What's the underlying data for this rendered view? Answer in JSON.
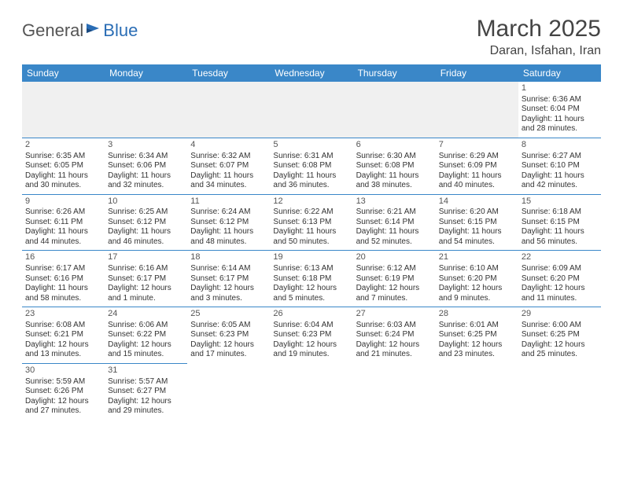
{
  "logo": {
    "part1": "General",
    "part2": "Blue"
  },
  "title": "March 2025",
  "location": "Daran, Isfahan, Iran",
  "colors": {
    "header_bg": "#3a87c8",
    "header_text": "#ffffff",
    "border": "#3a87c8",
    "text": "#333333",
    "title_text": "#444444",
    "logo_gray": "#555555",
    "logo_blue": "#2a6db5"
  },
  "weekdays": [
    "Sunday",
    "Monday",
    "Tuesday",
    "Wednesday",
    "Thursday",
    "Friday",
    "Saturday"
  ],
  "weeks": [
    [
      null,
      null,
      null,
      null,
      null,
      null,
      {
        "n": "1",
        "sr": "6:36 AM",
        "ss": "6:04 PM",
        "dl": "11 hours and 28 minutes."
      }
    ],
    [
      {
        "n": "2",
        "sr": "6:35 AM",
        "ss": "6:05 PM",
        "dl": "11 hours and 30 minutes."
      },
      {
        "n": "3",
        "sr": "6:34 AM",
        "ss": "6:06 PM",
        "dl": "11 hours and 32 minutes."
      },
      {
        "n": "4",
        "sr": "6:32 AM",
        "ss": "6:07 PM",
        "dl": "11 hours and 34 minutes."
      },
      {
        "n": "5",
        "sr": "6:31 AM",
        "ss": "6:08 PM",
        "dl": "11 hours and 36 minutes."
      },
      {
        "n": "6",
        "sr": "6:30 AM",
        "ss": "6:08 PM",
        "dl": "11 hours and 38 minutes."
      },
      {
        "n": "7",
        "sr": "6:29 AM",
        "ss": "6:09 PM",
        "dl": "11 hours and 40 minutes."
      },
      {
        "n": "8",
        "sr": "6:27 AM",
        "ss": "6:10 PM",
        "dl": "11 hours and 42 minutes."
      }
    ],
    [
      {
        "n": "9",
        "sr": "6:26 AM",
        "ss": "6:11 PM",
        "dl": "11 hours and 44 minutes."
      },
      {
        "n": "10",
        "sr": "6:25 AM",
        "ss": "6:12 PM",
        "dl": "11 hours and 46 minutes."
      },
      {
        "n": "11",
        "sr": "6:24 AM",
        "ss": "6:12 PM",
        "dl": "11 hours and 48 minutes."
      },
      {
        "n": "12",
        "sr": "6:22 AM",
        "ss": "6:13 PM",
        "dl": "11 hours and 50 minutes."
      },
      {
        "n": "13",
        "sr": "6:21 AM",
        "ss": "6:14 PM",
        "dl": "11 hours and 52 minutes."
      },
      {
        "n": "14",
        "sr": "6:20 AM",
        "ss": "6:15 PM",
        "dl": "11 hours and 54 minutes."
      },
      {
        "n": "15",
        "sr": "6:18 AM",
        "ss": "6:15 PM",
        "dl": "11 hours and 56 minutes."
      }
    ],
    [
      {
        "n": "16",
        "sr": "6:17 AM",
        "ss": "6:16 PM",
        "dl": "11 hours and 58 minutes."
      },
      {
        "n": "17",
        "sr": "6:16 AM",
        "ss": "6:17 PM",
        "dl": "12 hours and 1 minute."
      },
      {
        "n": "18",
        "sr": "6:14 AM",
        "ss": "6:17 PM",
        "dl": "12 hours and 3 minutes."
      },
      {
        "n": "19",
        "sr": "6:13 AM",
        "ss": "6:18 PM",
        "dl": "12 hours and 5 minutes."
      },
      {
        "n": "20",
        "sr": "6:12 AM",
        "ss": "6:19 PM",
        "dl": "12 hours and 7 minutes."
      },
      {
        "n": "21",
        "sr": "6:10 AM",
        "ss": "6:20 PM",
        "dl": "12 hours and 9 minutes."
      },
      {
        "n": "22",
        "sr": "6:09 AM",
        "ss": "6:20 PM",
        "dl": "12 hours and 11 minutes."
      }
    ],
    [
      {
        "n": "23",
        "sr": "6:08 AM",
        "ss": "6:21 PM",
        "dl": "12 hours and 13 minutes."
      },
      {
        "n": "24",
        "sr": "6:06 AM",
        "ss": "6:22 PM",
        "dl": "12 hours and 15 minutes."
      },
      {
        "n": "25",
        "sr": "6:05 AM",
        "ss": "6:23 PM",
        "dl": "12 hours and 17 minutes."
      },
      {
        "n": "26",
        "sr": "6:04 AM",
        "ss": "6:23 PM",
        "dl": "12 hours and 19 minutes."
      },
      {
        "n": "27",
        "sr": "6:03 AM",
        "ss": "6:24 PM",
        "dl": "12 hours and 21 minutes."
      },
      {
        "n": "28",
        "sr": "6:01 AM",
        "ss": "6:25 PM",
        "dl": "12 hours and 23 minutes."
      },
      {
        "n": "29",
        "sr": "6:00 AM",
        "ss": "6:25 PM",
        "dl": "12 hours and 25 minutes."
      }
    ],
    [
      {
        "n": "30",
        "sr": "5:59 AM",
        "ss": "6:26 PM",
        "dl": "12 hours and 27 minutes."
      },
      {
        "n": "31",
        "sr": "5:57 AM",
        "ss": "6:27 PM",
        "dl": "12 hours and 29 minutes."
      },
      null,
      null,
      null,
      null,
      null
    ]
  ],
  "labels": {
    "sunrise": "Sunrise:",
    "sunset": "Sunset:",
    "daylight": "Daylight:"
  }
}
